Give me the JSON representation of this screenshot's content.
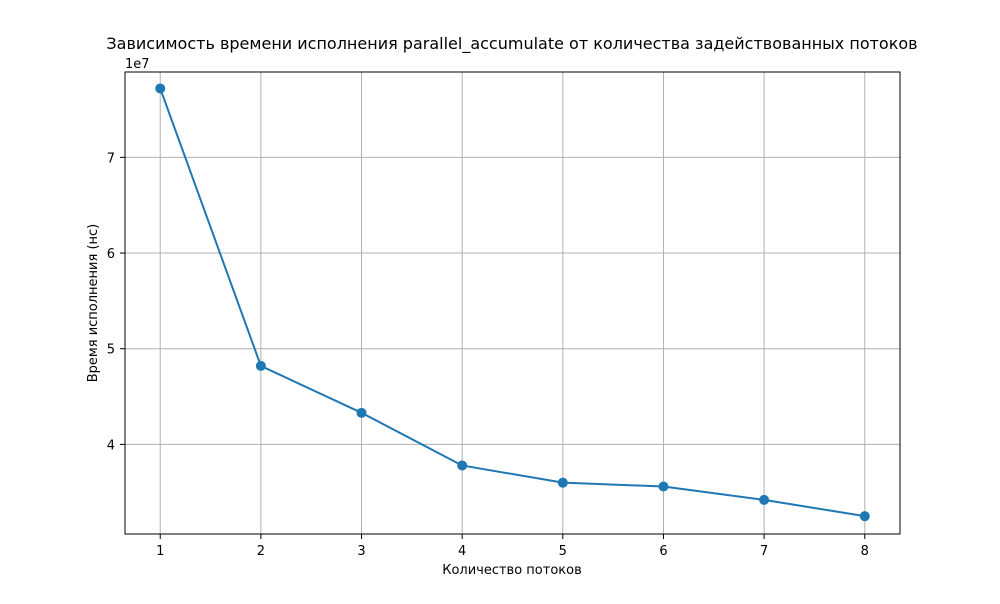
{
  "chart_data": {
    "type": "line",
    "title": "Зависимость времени исполнения parallel_accumulate от количества задействованных потоков",
    "xlabel": "Количество потоков",
    "ylabel": "Время исполнения (нс)",
    "y_offset_label": "1e7",
    "x": [
      1,
      2,
      3,
      4,
      5,
      6,
      7,
      8
    ],
    "series": [
      {
        "values": [
          77200000,
          48200000,
          43300000,
          37800000,
          36000000,
          35600000,
          34200000,
          32500000
        ]
      }
    ],
    "x_ticks": [
      1,
      2,
      3,
      4,
      5,
      6,
      7,
      8
    ],
    "x_tick_labels": [
      "1",
      "2",
      "3",
      "4",
      "5",
      "6",
      "7",
      "8"
    ],
    "y_ticks": [
      40000000,
      50000000,
      60000000,
      70000000
    ],
    "y_tick_labels": [
      "4",
      "5",
      "6",
      "7"
    ],
    "xlim": [
      0.65,
      8.35
    ],
    "ylim": [
      30636000,
      78918000
    ],
    "grid": true,
    "marker": "circle",
    "colors": {
      "line": "#1f77b4",
      "grid": "#b0b0b0",
      "axes": "#000000"
    }
  }
}
